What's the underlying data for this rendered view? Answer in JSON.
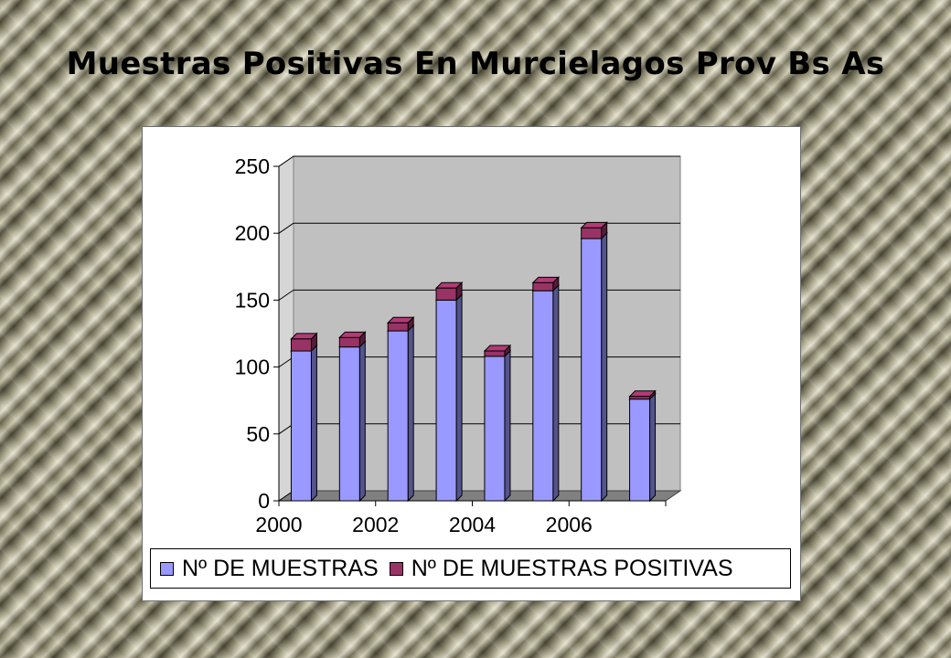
{
  "page": {
    "title": "Muestras Positivas En Murcielagos Prov Bs As"
  },
  "colors": {
    "series_muestras": "#9999ff",
    "series_positivas": "#993366",
    "plot_wall": "#c0c0c0",
    "plot_floor": "#808080"
  },
  "chart_data": {
    "type": "bar",
    "stacked": true,
    "three_d": true,
    "title": "",
    "xlabel": "",
    "ylabel": "",
    "categories": [
      "2000",
      "2001",
      "2002",
      "2003",
      "2004",
      "2005",
      "2006",
      "2007"
    ],
    "x_tick_labels": [
      "2000",
      "2002",
      "2004",
      "2006"
    ],
    "y_ticks": [
      "0",
      "50",
      "100",
      "150",
      "200",
      "250"
    ],
    "ylim": [
      0,
      250
    ],
    "grid": true,
    "legend_position": "bottom",
    "series": [
      {
        "name": "Nº DE MUESTRAS",
        "values": [
          112,
          115,
          127,
          150,
          108,
          157,
          196,
          76
        ]
      },
      {
        "name": "Nº DE MUESTRAS POSITIVAS",
        "values": [
          9,
          7,
          6,
          9,
          4,
          6,
          8,
          2
        ]
      }
    ]
  }
}
